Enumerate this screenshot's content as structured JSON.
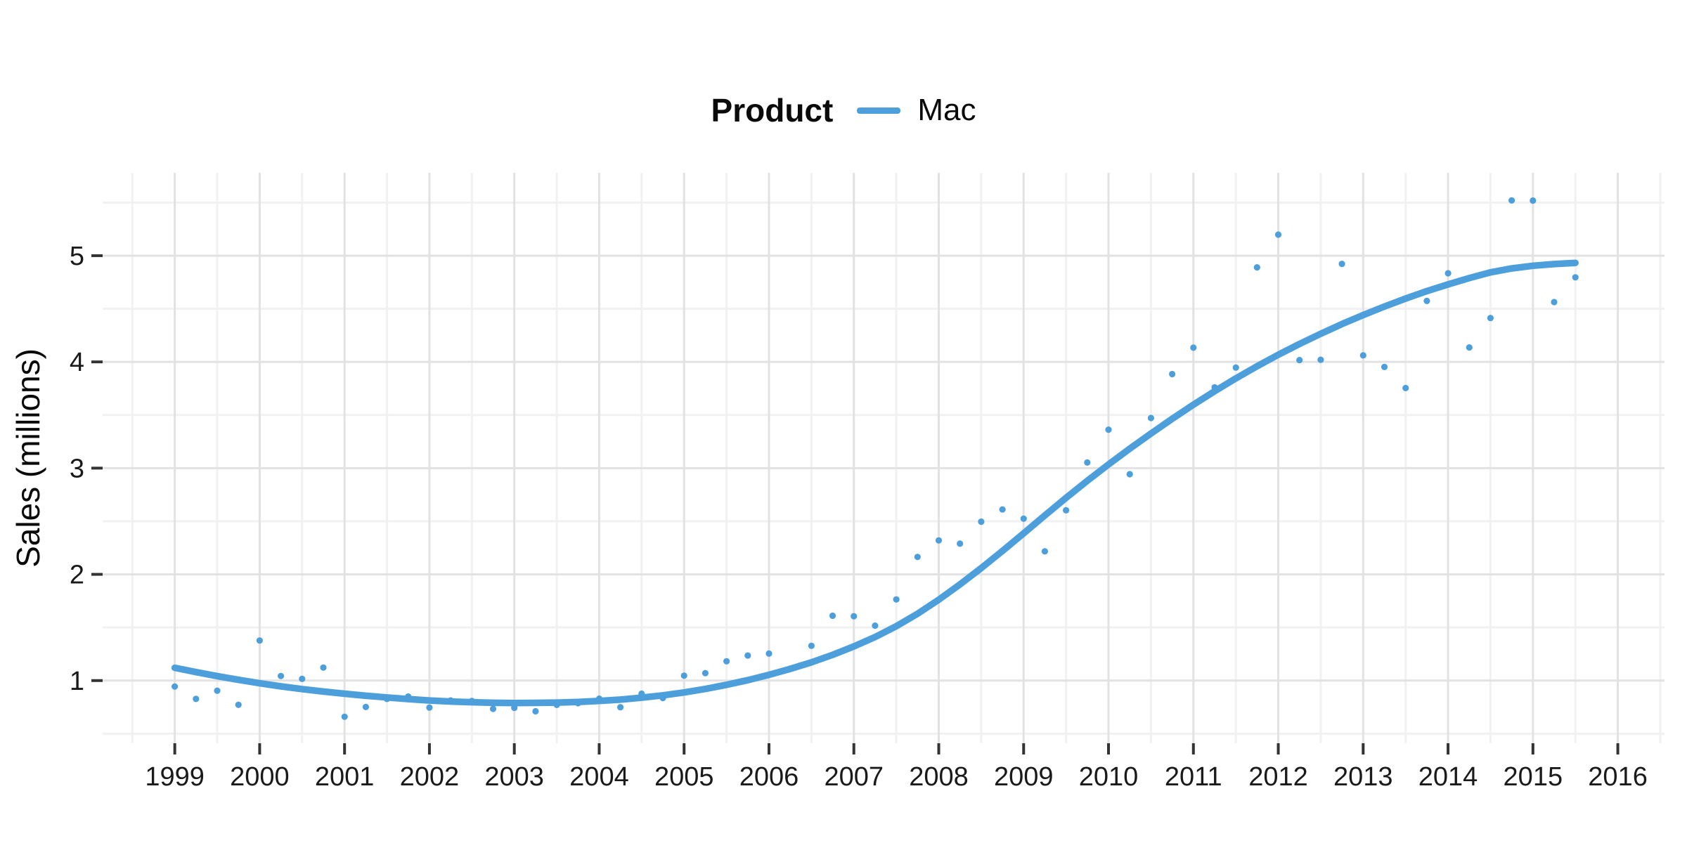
{
  "page": {
    "background": "#ffffff"
  },
  "legend": {
    "title": "Product",
    "items": [
      {
        "label": "Mac",
        "color": "#4d9fdb"
      }
    ]
  },
  "chart_data": {
    "type": "scatter",
    "title": "",
    "xlabel": "",
    "ylabel": "Sales (millions)",
    "legend_title": "Product",
    "legend_position": "top",
    "grid": {
      "major_color": "#e2e2e2",
      "minor_color": "#f1f1f1",
      "on": true
    },
    "xlim": [
      1998.15,
      2016.55
    ],
    "ylim": [
      0.41,
      5.78
    ],
    "x_ticks": [
      1999,
      2000,
      2001,
      2002,
      2003,
      2004,
      2005,
      2006,
      2007,
      2008,
      2009,
      2010,
      2011,
      2012,
      2013,
      2014,
      2015,
      2016
    ],
    "x_minor_ticks": [
      1998.5,
      1999.5,
      2000.5,
      2001.5,
      2002.5,
      2003.5,
      2004.5,
      2005.5,
      2006.5,
      2007.5,
      2008.5,
      2009.5,
      2010.5,
      2011.5,
      2012.5,
      2013.5,
      2014.5,
      2015.5,
      2016.5
    ],
    "y_ticks": [
      1,
      2,
      3,
      4,
      5
    ],
    "y_minor_ticks": [
      0.5,
      1.5,
      2.5,
      3.5,
      4.5,
      5.5
    ],
    "series": [
      {
        "name": "Mac",
        "render": "points",
        "color": "#4d9fdb",
        "x": [
          1999,
          1999.25,
          1999.5,
          1999.75,
          2000,
          2000.25,
          2000.5,
          2000.75,
          2001,
          2001.25,
          2001.5,
          2001.75,
          2002,
          2002.25,
          2002.5,
          2002.75,
          2003,
          2003.25,
          2003.5,
          2003.75,
          2004,
          2004.25,
          2004.5,
          2004.75,
          2005,
          2005.25,
          2005.5,
          2005.75,
          2006,
          2006.25,
          2006.5,
          2006.75,
          2007,
          2007.25,
          2007.5,
          2007.75,
          2008,
          2008.25,
          2008.5,
          2008.75,
          2009,
          2009.25,
          2009.5,
          2009.75,
          2010,
          2010.25,
          2010.5,
          2010.75,
          2011,
          2011.25,
          2011.5,
          2011.75,
          2012,
          2012.25,
          2012.5,
          2012.75,
          2013,
          2013.25,
          2013.5,
          2013.75,
          2014,
          2014.25,
          2014.5,
          2014.75,
          2015,
          2015.25,
          2015.5
        ],
        "y": [
          0.944,
          0.827,
          0.905,
          0.772,
          1.377,
          1.043,
          1.016,
          1.122,
          0.659,
          0.751,
          0.827,
          0.85,
          0.746,
          0.813,
          0.808,
          0.734,
          0.743,
          0.711,
          0.771,
          0.787,
          0.829,
          0.749,
          0.876,
          0.836,
          1.046,
          1.07,
          1.182,
          1.236,
          1.254,
          1.112,
          1.327,
          1.61,
          1.606,
          1.517,
          1.764,
          2.164,
          2.319,
          2.289,
          2.496,
          2.611,
          2.524,
          2.216,
          2.603,
          3.053,
          3.362,
          2.943,
          3.472,
          3.885,
          4.134,
          3.76,
          3.947,
          4.89,
          5.198,
          4.017,
          4.02,
          4.923,
          4.061,
          3.952,
          3.754,
          4.574,
          4.834,
          4.136,
          4.413,
          5.52,
          5.519,
          4.563,
          4.796
        ]
      },
      {
        "name": "Mac loess smooth",
        "render": "line",
        "color": "#4d9fdb",
        "x": [
          1999,
          1999.25,
          1999.5,
          1999.75,
          2000,
          2000.25,
          2000.5,
          2000.75,
          2001,
          2001.25,
          2001.5,
          2001.75,
          2002,
          2002.25,
          2002.5,
          2002.75,
          2003,
          2003.25,
          2003.5,
          2003.75,
          2004,
          2004.25,
          2004.5,
          2004.75,
          2005,
          2005.25,
          2005.5,
          2005.75,
          2006,
          2006.25,
          2006.5,
          2006.75,
          2007,
          2007.25,
          2007.5,
          2007.75,
          2008,
          2008.25,
          2008.5,
          2008.75,
          2009,
          2009.25,
          2009.5,
          2009.75,
          2010,
          2010.25,
          2010.5,
          2010.75,
          2011,
          2011.25,
          2011.5,
          2011.75,
          2012,
          2012.25,
          2012.5,
          2012.75,
          2013,
          2013.25,
          2013.5,
          2013.75,
          2014,
          2014.25,
          2014.5,
          2014.75,
          2015,
          2015.25,
          2015.5
        ],
        "y": [
          1.12,
          1.08,
          1.042,
          1.007,
          0.975,
          0.946,
          0.92,
          0.897,
          0.876,
          0.857,
          0.841,
          0.826,
          0.813,
          0.803,
          0.796,
          0.791,
          0.789,
          0.79,
          0.793,
          0.799,
          0.808,
          0.821,
          0.839,
          0.861,
          0.888,
          0.921,
          0.96,
          1.004,
          1.054,
          1.11,
          1.172,
          1.242,
          1.321,
          1.41,
          1.512,
          1.629,
          1.761,
          1.905,
          2.059,
          2.22,
          2.386,
          2.554,
          2.72,
          2.881,
          3.035,
          3.183,
          3.326,
          3.464,
          3.597,
          3.724,
          3.845,
          3.959,
          4.067,
          4.169,
          4.265,
          4.356,
          4.441,
          4.521,
          4.596,
          4.666,
          4.73,
          4.789,
          4.843,
          4.88,
          4.905,
          4.921,
          4.932
        ]
      }
    ]
  }
}
